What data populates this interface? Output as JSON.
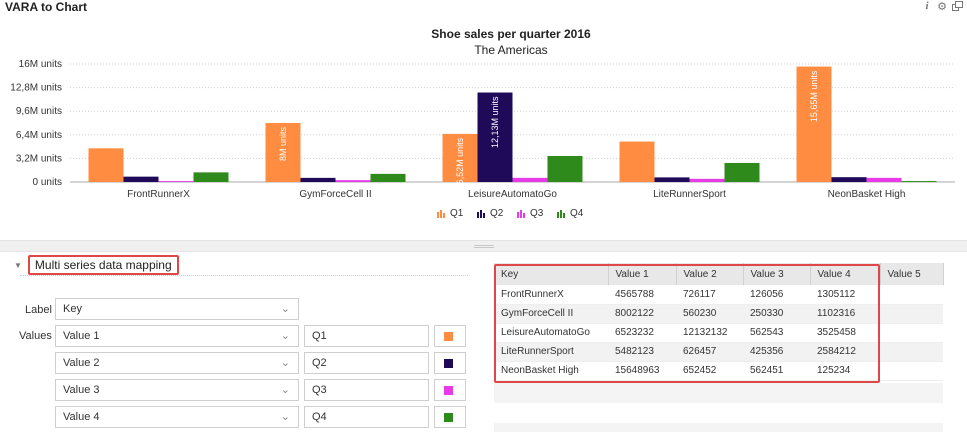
{
  "app": {
    "title": "VARA to Chart",
    "icons": [
      "info-icon",
      "gear-icon",
      "popout-icon"
    ]
  },
  "chart_data": {
    "type": "bar",
    "title": "Shoe sales per quarter 2016",
    "subtitle": "The Americas",
    "xlabel": "",
    "ylabel": "",
    "ylim": [
      0,
      16000000
    ],
    "yticks": [
      "0 units",
      "3,2M units",
      "6,4M units",
      "9,6M units",
      "12,8M units",
      "16M units"
    ],
    "ytick_values": [
      0,
      3200000,
      6400000,
      9600000,
      12800000,
      16000000
    ],
    "grid": true,
    "legend_position": "bottom",
    "categories": [
      "FrontRunnerX",
      "GymForceCell II",
      "LeisureAutomatoGo",
      "LiteRunnerSport",
      "NeonBasket High"
    ],
    "series": [
      {
        "name": "Q1",
        "color": "#FF8C40",
        "values": [
          4565788,
          8002122,
          6523232,
          5482123,
          15648963
        ]
      },
      {
        "name": "Q2",
        "color": "#1F0A5A",
        "values": [
          726117,
          560230,
          12132132,
          626457,
          652452
        ]
      },
      {
        "name": "Q3",
        "color": "#E83AE8",
        "values": [
          126056,
          250330,
          562543,
          425356,
          562451
        ]
      },
      {
        "name": "Q4",
        "color": "#2E8A1A",
        "values": [
          1305112,
          1102316,
          3525458,
          2584212,
          125234
        ]
      }
    ],
    "data_labels": [
      {
        "series": 0,
        "category": 1,
        "text": "8M units"
      },
      {
        "series": 0,
        "category": 2,
        "text": "6,52M units"
      },
      {
        "series": 1,
        "category": 2,
        "text": "12,13M units"
      },
      {
        "series": 0,
        "category": 4,
        "text": "15,65M units"
      }
    ]
  },
  "mapping": {
    "section_title": "Multi series data mapping",
    "label_caption": "Label",
    "label_value": "Key",
    "values_caption": "Values",
    "rows": [
      {
        "column": "Value 1",
        "series_name": "Q1",
        "color": "#FF8C40"
      },
      {
        "column": "Value 2",
        "series_name": "Q2",
        "color": "#1F0A5A"
      },
      {
        "column": "Value 3",
        "series_name": "Q3",
        "color": "#E83AE8"
      },
      {
        "column": "Value 4",
        "series_name": "Q4",
        "color": "#2E8A1A"
      }
    ]
  },
  "table": {
    "headers": [
      "Key",
      "Value 1",
      "Value 2",
      "Value 3",
      "Value 4",
      "Value 5"
    ],
    "rows": [
      [
        "FrontRunnerX",
        "4565788",
        "726117",
        "126056",
        "1305112",
        ""
      ],
      [
        "GymForceCell II",
        "8002122",
        "560230",
        "250330",
        "1102316",
        ""
      ],
      [
        "LeisureAutomatoGo",
        "6523232",
        "12132132",
        "562543",
        "3525458",
        ""
      ],
      [
        "LiteRunnerSport",
        "5482123",
        "626457",
        "425356",
        "2584212",
        ""
      ],
      [
        "NeonBasket High",
        "15648963",
        "652452",
        "562451",
        "125234",
        ""
      ]
    ]
  }
}
